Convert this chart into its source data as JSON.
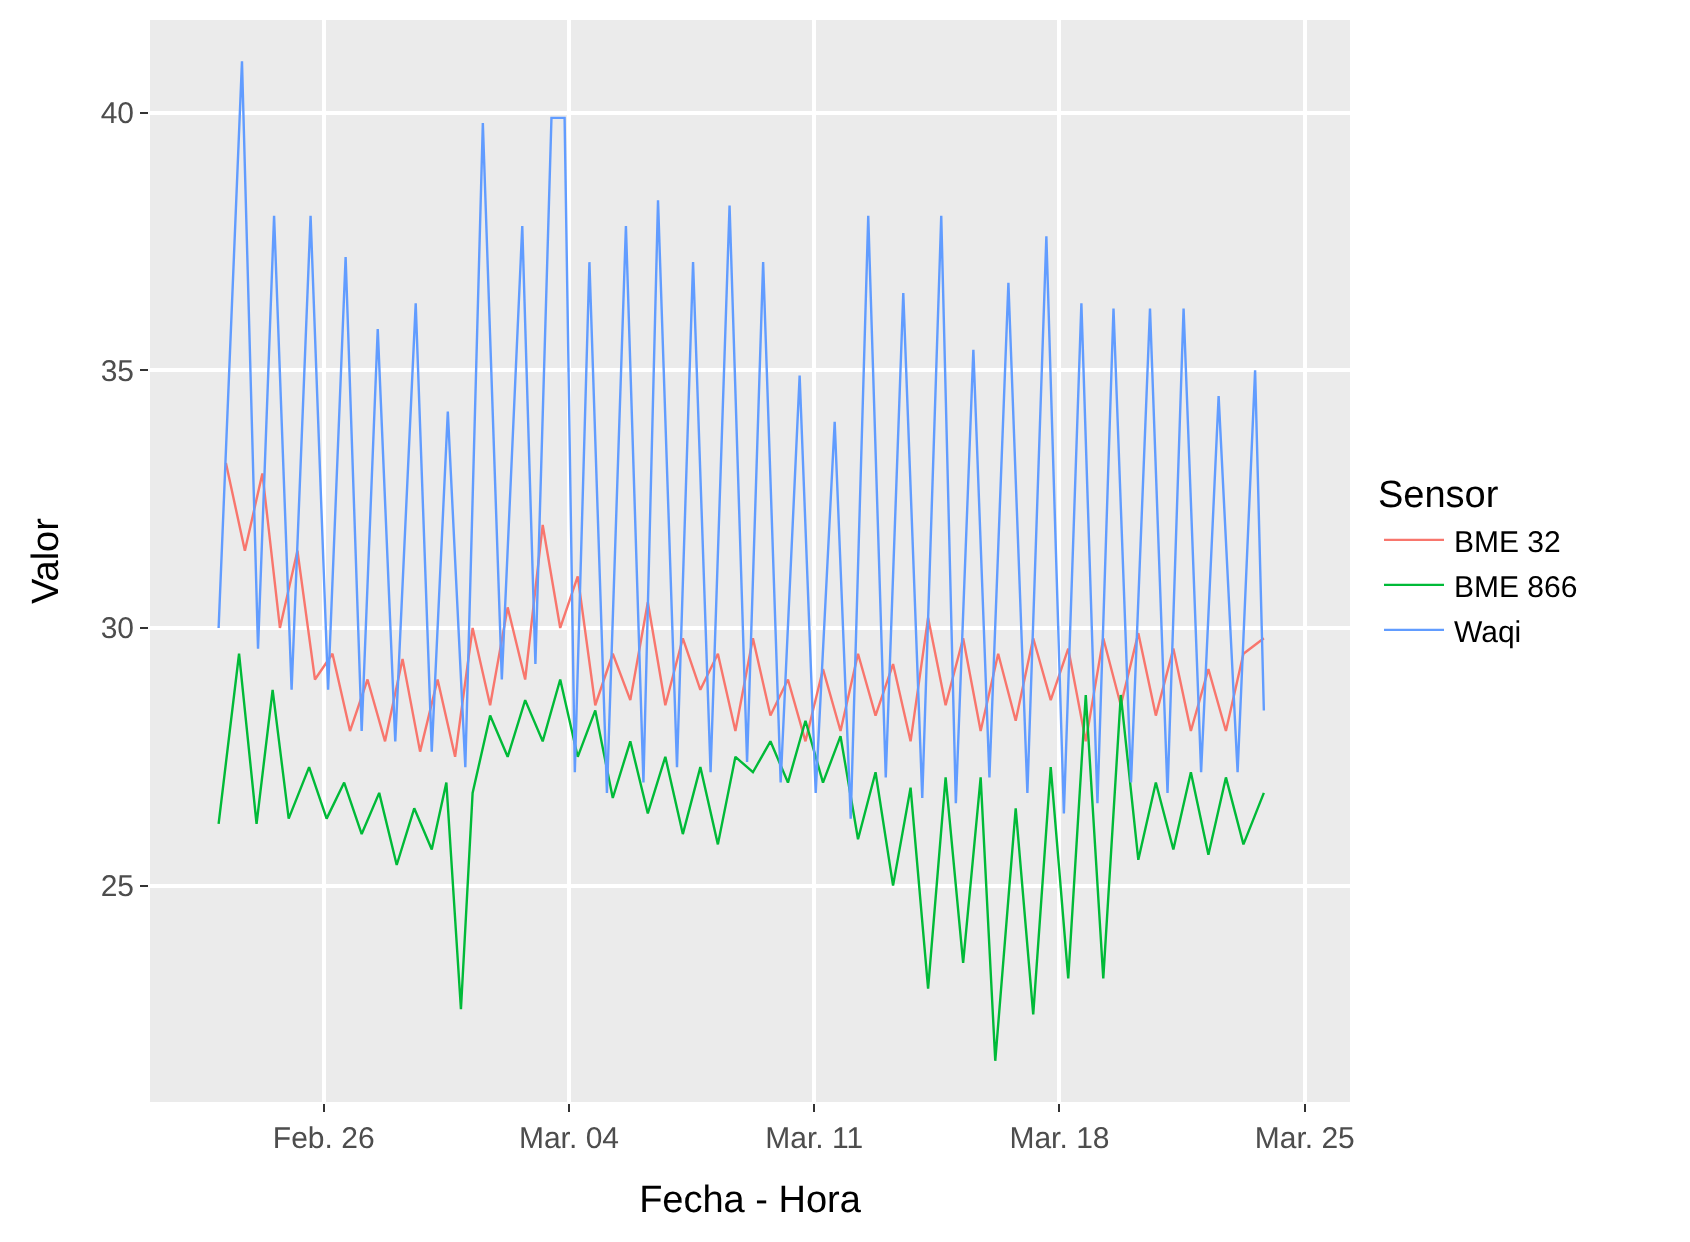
{
  "chart_data": {
    "type": "line",
    "xlabel": "Fecha - Hora",
    "ylabel": "Valor",
    "legend_title": "Sensor",
    "legend": "right",
    "grid": true,
    "xlim": [
      "--02-21T01:00",
      "--03-26T07:00"
    ],
    "ylim": [
      20.8,
      41.8
    ],
    "xticks": [
      {
        "value": "--02-26",
        "label": "Feb. 26"
      },
      {
        "value": "--03-04",
        "label": "Mar. 04"
      },
      {
        "value": "--03-11",
        "label": "Mar. 11"
      },
      {
        "value": "--03-18",
        "label": "Mar. 18"
      },
      {
        "value": "--03-25",
        "label": "Mar. 25"
      }
    ],
    "yticks": [
      25,
      30,
      35,
      40
    ],
    "series": [
      {
        "name": "BME 32",
        "color": "#f8766d",
        "x": [
          "--02-23T05:00",
          "--02-23T18:00",
          "--02-24T06:00",
          "--02-24T18:00",
          "--02-25T06:00",
          "--02-25T18:00",
          "--02-26T06:00",
          "--02-26T18:00",
          "--02-27T06:00",
          "--02-27T18:00",
          "--02-28T06:00",
          "--02-28T18:00",
          "--02-29T06:00",
          "--02-29T18:00",
          "--03-01T06:00",
          "--03-01T18:00",
          "--03-02T06:00",
          "--03-02T18:00",
          "--03-03T06:00",
          "--03-03T18:00",
          "--03-04T06:00",
          "--03-04T18:00",
          "--03-05T06:00",
          "--03-05T18:00",
          "--03-06T06:00",
          "--03-06T18:00",
          "--03-07T06:00",
          "--03-07T18:00",
          "--03-08T06:00",
          "--03-08T18:00",
          "--03-09T06:00",
          "--03-09T18:00",
          "--03-10T06:00",
          "--03-10T18:00",
          "--03-11T06:00",
          "--03-11T18:00",
          "--03-12T06:00",
          "--03-12T18:00",
          "--03-13T06:00",
          "--03-13T18:00",
          "--03-14T06:00",
          "--03-14T18:00",
          "--03-15T06:00",
          "--03-15T18:00",
          "--03-16T06:00",
          "--03-16T18:00",
          "--03-17T06:00",
          "--03-17T18:00",
          "--03-18T06:00",
          "--03-18T18:00",
          "--03-19T06:00",
          "--03-19T18:00",
          "--03-20T06:00",
          "--03-20T18:00",
          "--03-21T06:00",
          "--03-21T18:00",
          "--03-22T06:00",
          "--03-22T18:00",
          "--03-23T06:00",
          "--03-23T20:00"
        ],
        "values": [
          33.2,
          31.5,
          33.0,
          30.0,
          31.5,
          29.0,
          29.5,
          28.0,
          29.0,
          27.8,
          29.4,
          27.6,
          29.0,
          27.5,
          30.0,
          28.5,
          30.4,
          29.0,
          32.0,
          30.0,
          31.0,
          28.5,
          29.5,
          28.6,
          30.5,
          28.5,
          29.8,
          28.8,
          29.5,
          28.0,
          29.8,
          28.3,
          29.0,
          27.8,
          29.2,
          28.0,
          29.5,
          28.3,
          29.3,
          27.8,
          30.2,
          28.5,
          29.8,
          28.0,
          29.5,
          28.2,
          29.8,
          28.6,
          29.6,
          27.8,
          29.8,
          28.5,
          29.9,
          28.3,
          29.6,
          28.0,
          29.2,
          28.0,
          29.5,
          29.8
        ]
      },
      {
        "name": "BME 866",
        "color": "#00ba38",
        "x": [
          "--02-23T00:00",
          "--02-23T14:00",
          "--02-24T02:00",
          "--02-24T13:00",
          "--02-25T00:00",
          "--02-25T14:00",
          "--02-26T02:00",
          "--02-26T14:00",
          "--02-27T02:00",
          "--02-27T14:00",
          "--02-28T02:00",
          "--02-28T14:00",
          "--02-29T02:00",
          "--02-29T12:00",
          "--02-29T22:00",
          "--03-01T06:00",
          "--03-01T18:00",
          "--03-02T06:00",
          "--03-02T18:00",
          "--03-03T06:00",
          "--03-03T18:00",
          "--03-04T06:00",
          "--03-04T18:00",
          "--03-05T06:00",
          "--03-05T18:00",
          "--03-06T06:00",
          "--03-06T18:00",
          "--03-07T06:00",
          "--03-07T18:00",
          "--03-08T06:00",
          "--03-08T18:00",
          "--03-09T06:00",
          "--03-09T18:00",
          "--03-10T06:00",
          "--03-10T18:00",
          "--03-11T06:00",
          "--03-11T18:00",
          "--03-12T06:00",
          "--03-12T18:00",
          "--03-13T06:00",
          "--03-13T18:00",
          "--03-14T06:00",
          "--03-14T18:00",
          "--03-15T06:00",
          "--03-15T18:00",
          "--03-16T04:00",
          "--03-16T18:00",
          "--03-17T06:00",
          "--03-17T18:00",
          "--03-18T06:00",
          "--03-18T18:00",
          "--03-19T06:00",
          "--03-19T18:00",
          "--03-20T06:00",
          "--03-20T18:00",
          "--03-21T06:00",
          "--03-21T18:00",
          "--03-22T06:00",
          "--03-22T18:00",
          "--03-23T06:00",
          "--03-23T20:00"
        ],
        "values": [
          26.2,
          29.5,
          26.2,
          28.8,
          26.3,
          27.3,
          26.3,
          27.0,
          26.0,
          26.8,
          25.4,
          26.5,
          25.7,
          27.0,
          22.6,
          26.8,
          28.3,
          27.5,
          28.6,
          27.8,
          29.0,
          27.5,
          28.4,
          26.7,
          27.8,
          26.4,
          27.5,
          26.0,
          27.3,
          25.8,
          27.5,
          27.2,
          27.8,
          27.0,
          28.2,
          27.0,
          27.9,
          25.9,
          27.2,
          25.0,
          26.9,
          23.0,
          27.1,
          23.5,
          27.1,
          21.6,
          26.5,
          22.5,
          27.3,
          23.2,
          28.7,
          23.2,
          28.7,
          25.5,
          27.0,
          25.7,
          27.2,
          25.6,
          27.1,
          25.8,
          26.8
        ]
      },
      {
        "name": "Waqi",
        "color": "#619cff",
        "x": [
          "--02-23T00:00",
          "--02-23T16:00",
          "--02-24T03:00",
          "--02-24T14:00",
          "--02-25T02:00",
          "--02-25T15:00",
          "--02-26T03:00",
          "--02-26T15:00",
          "--02-27T02:00",
          "--02-27T13:00",
          "--02-28T01:00",
          "--02-28T15:00",
          "--02-29T02:00",
          "--02-29T13:00",
          "--03-01T01:00",
          "--03-01T13:00",
          "--03-02T02:00",
          "--03-02T16:00",
          "--03-03T01:00",
          "--03-03T12:00",
          "--03-03T21:00",
          "--03-04T04:00",
          "--03-04T14:00",
          "--03-05T02:00",
          "--03-05T15:00",
          "--03-06T03:00",
          "--03-06T13:00",
          "--03-07T02:00",
          "--03-07T13:00",
          "--03-08T01:00",
          "--03-08T14:00",
          "--03-09T02:00",
          "--03-09T13:00",
          "--03-10T01:00",
          "--03-10T14:00",
          "--03-11T01:00",
          "--03-11T14:00",
          "--03-12T01:00",
          "--03-12T13:00",
          "--03-13T01:00",
          "--03-13T13:00",
          "--03-14T02:00",
          "--03-14T15:00",
          "--03-15T01:00",
          "--03-15T13:00",
          "--03-16T00:00",
          "--03-16T13:00",
          "--03-17T02:00",
          "--03-17T15:00",
          "--03-18T03:00",
          "--03-18T15:00",
          "--03-19T02:00",
          "--03-19T13:00",
          "--03-20T01:00",
          "--03-20T14:00",
          "--03-21T02:00",
          "--03-21T13:00",
          "--03-22T01:00",
          "--03-22T13:00",
          "--03-23T02:00",
          "--03-23T14:00",
          "--03-23T20:00"
        ],
        "values": [
          30.0,
          41.0,
          29.6,
          38.0,
          28.8,
          38.0,
          28.8,
          37.2,
          28.0,
          35.8,
          27.8,
          36.3,
          27.6,
          34.2,
          27.3,
          39.8,
          29.0,
          37.8,
          29.3,
          39.9,
          39.9,
          27.2,
          37.1,
          26.8,
          37.8,
          27.0,
          38.3,
          27.3,
          37.1,
          27.2,
          38.2,
          27.4,
          37.1,
          27.0,
          34.9,
          26.8,
          34.0,
          26.3,
          38.0,
          27.1,
          36.5,
          26.7,
          38.0,
          26.6,
          35.4,
          27.1,
          36.7,
          26.8,
          37.6,
          26.4,
          36.3,
          26.6,
          36.2,
          27.0,
          36.2,
          26.8,
          36.2,
          27.2,
          34.5,
          27.2,
          35.0,
          28.4
        ]
      }
    ]
  }
}
